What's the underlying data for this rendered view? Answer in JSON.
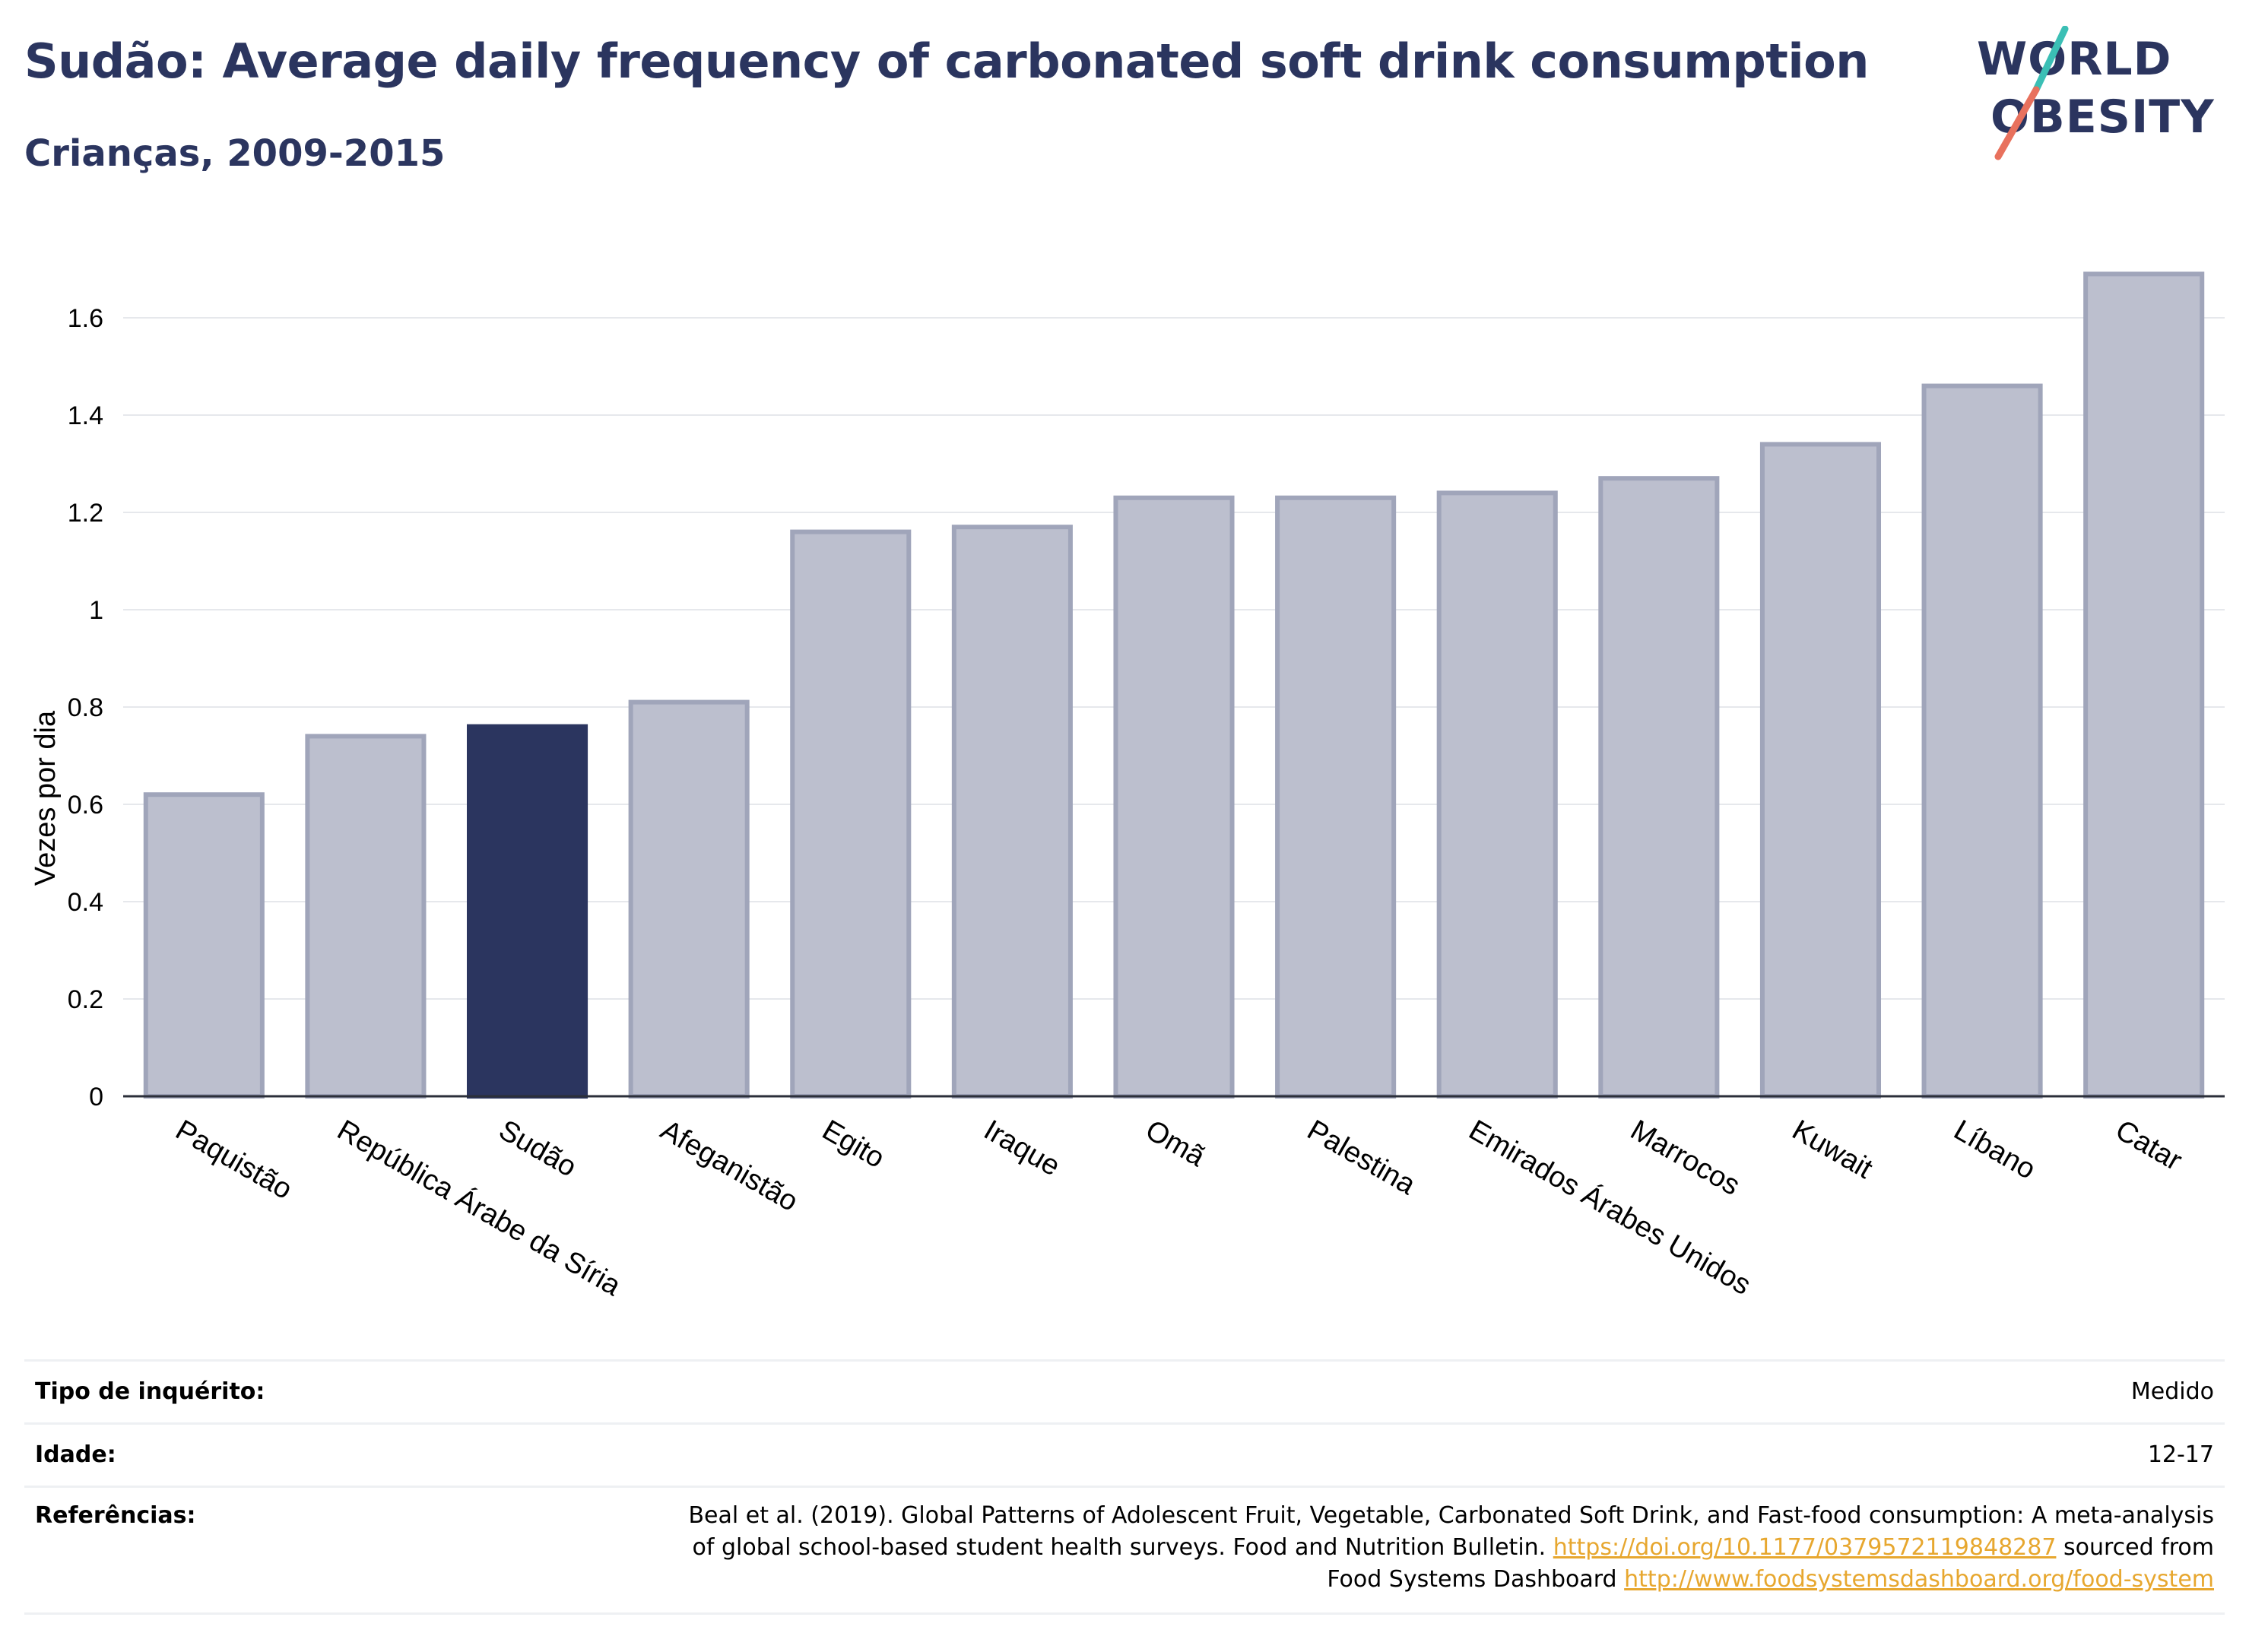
{
  "header": {
    "title": "Sudão: Average daily frequency of carbonated soft drink consumption",
    "subtitle": "Crianças, 2009-2015"
  },
  "logo": {
    "line1": "WORLD",
    "line2": "OBESITY",
    "icon": "world-obesity-logo"
  },
  "colors": {
    "highlight": "#2b355f",
    "bar_fill": "#bcbfce",
    "bar_stroke": "#a0a5ba",
    "grid": "#e6e8ec",
    "logo_teal": "#3bbfb5",
    "logo_coral": "#e8715d",
    "link": "#e7a72f"
  },
  "chart_data": {
    "type": "bar",
    "title": "",
    "xlabel": "",
    "ylabel": "Vezes por dia",
    "ylim": [
      0,
      1.75
    ],
    "yticks": [
      0,
      0.2,
      0.4,
      0.6,
      0.8,
      1,
      1.2,
      1.4,
      1.6
    ],
    "ytick_labels": [
      "0",
      "0.2",
      "0.4",
      "0.6",
      "0.8",
      "1",
      "1.2",
      "1.4",
      "1.6"
    ],
    "grid": true,
    "highlight_category": "Sudão",
    "categories": [
      "Paquistão",
      "República Árabe da Síria",
      "Sudão",
      "Afeganistão",
      "Egito",
      "Iraque",
      "Omã",
      "Palestina",
      "Emirados Árabes Unidos",
      "Marrocos",
      "Kuwait",
      "Líbano",
      "Catar"
    ],
    "values": [
      0.62,
      0.74,
      0.76,
      0.81,
      1.16,
      1.17,
      1.23,
      1.23,
      1.24,
      1.27,
      1.34,
      1.46,
      1.69
    ]
  },
  "info_table": {
    "survey_type_label": "Tipo de inquérito:",
    "survey_type_value": "Medido",
    "age_label": "Idade:",
    "age_value": "12-17",
    "references_label": "Referências:",
    "references_text_1": "Beal et al. (2019). Global Patterns of Adolescent Fruit, Vegetable, Carbonated Soft Drink, and Fast-food consumption: A meta-analysis",
    "references_text_2": "of global school-based student health surveys. Food and Nutrition Bulletin.",
    "references_link_1": "https://doi.org/10.1177/0379572119848287",
    "references_text_3": "sourced from",
    "references_text_4": "Food Systems Dashboard",
    "references_link_2": "http://www.foodsystemsdashboard.org/food-system"
  }
}
